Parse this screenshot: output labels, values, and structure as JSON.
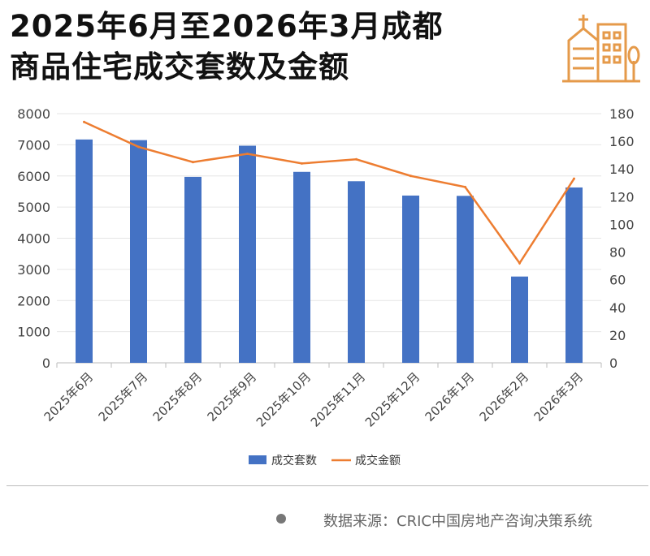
{
  "title": {
    "line1": "2025年6月至2026年3月成都",
    "line2": "商品住宅成交套数及金额"
  },
  "logo_icon": "building-icon",
  "colors": {
    "bar": "#4472c4",
    "line": "#ed7d31",
    "logo": "#e59a4a"
  },
  "source": "数据来源：CRIC中国房地产咨询决策系统",
  "chart_data": {
    "type": "bar+line",
    "categories": [
      "2025年6月",
      "2025年7月",
      "2025年8月",
      "2025年9月",
      "2025年10月",
      "2025年11月",
      "2025年12月",
      "2026年1月",
      "2026年2月",
      "2026年3月"
    ],
    "series": [
      {
        "name": "成交套数",
        "type": "bar",
        "axis": "left",
        "values": [
          7170,
          7150,
          5970,
          6970,
          6130,
          5830,
          5370,
          5360,
          2770,
          5630
        ]
      },
      {
        "name": "成交金额",
        "type": "line",
        "axis": "right",
        "values": [
          174,
          156,
          145,
          151,
          144,
          147,
          135,
          127,
          72,
          133
        ]
      }
    ],
    "ylim_left": [
      0,
      8000
    ],
    "yticks_left": [
      "0",
      "1000",
      "2000",
      "3000",
      "4000",
      "5000",
      "6000",
      "7000",
      "8000"
    ],
    "ylim_right": [
      0,
      180
    ],
    "yticks_right": [
      "0",
      "20",
      "40",
      "60",
      "80",
      "100",
      "120",
      "140",
      "160",
      "180"
    ],
    "grid": true,
    "legend": "bottom"
  }
}
